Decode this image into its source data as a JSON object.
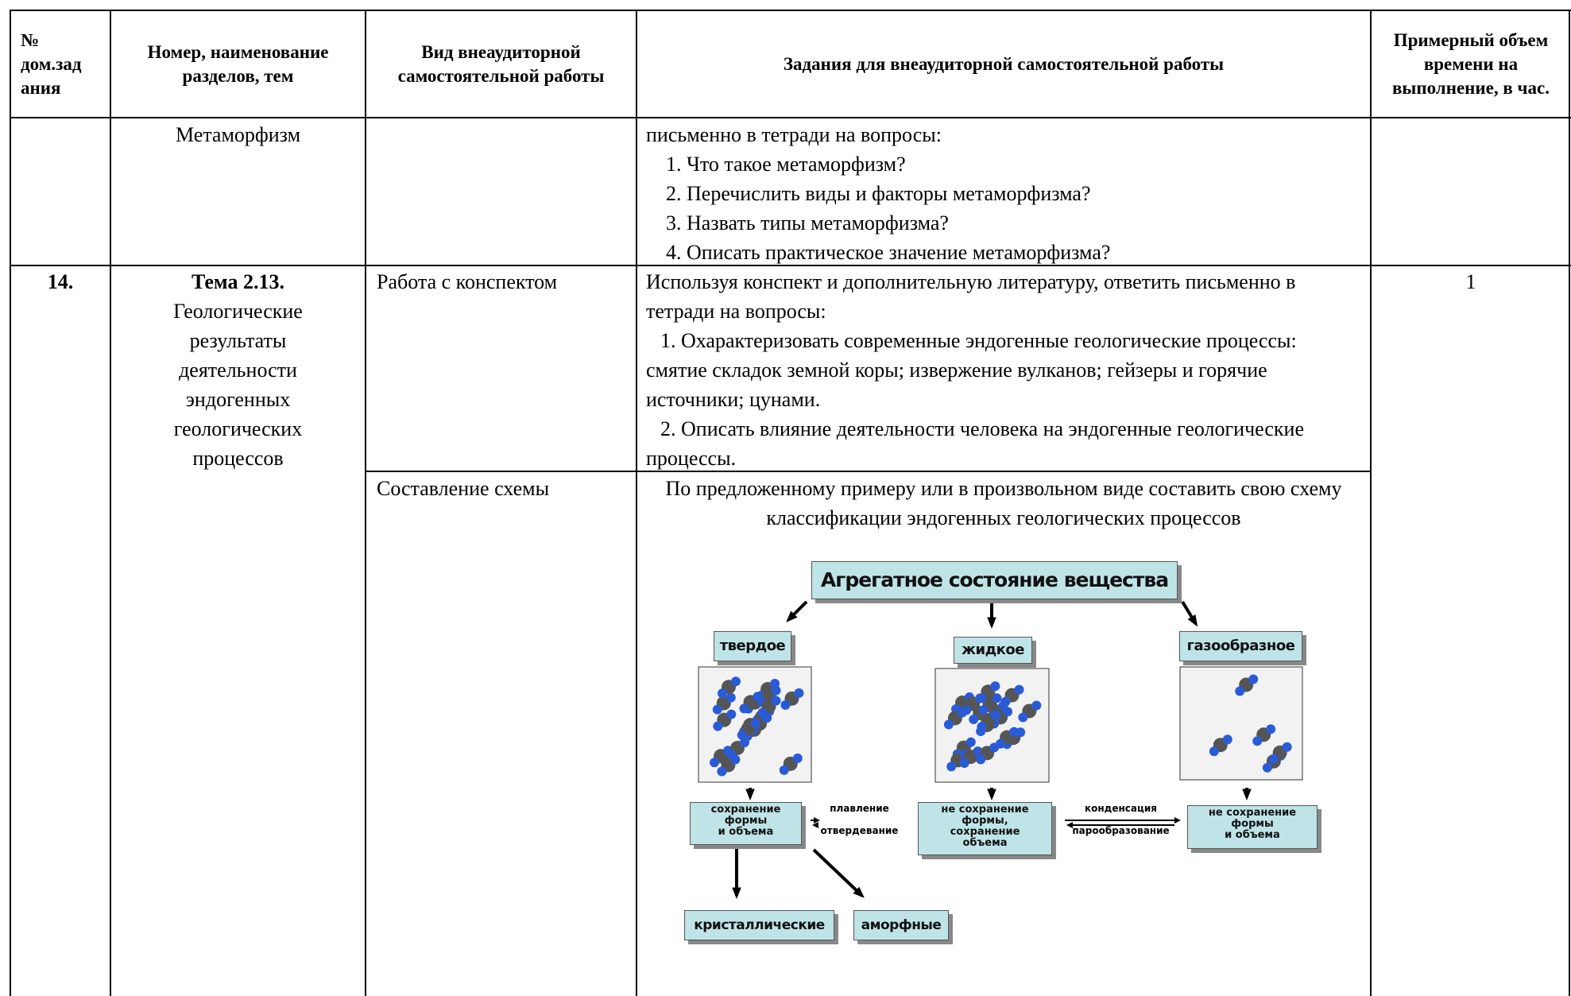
{
  "table": {
    "header": [
      "№\nдом.зад\nания",
      "Номер, наименование разделов, тем",
      "Вид внеаудиторной самостоятельной работы",
      "Задания для внеаудиторной самостоятельной работы",
      "Примерный объем времени на выполнение, в час."
    ],
    "rows": [
      {
        "topic": "Метаморфизм",
        "task_lines": [
          "письменно в тетради на вопросы:"
        ],
        "questions": [
          "1. Что такое метаморфизм?",
          "2. Перечислить виды и факторы метаморфизма?",
          "3. Назвать типы метаморфизма?",
          "4. Описать практическое значение метаморфизма?"
        ]
      },
      {
        "number": "14.",
        "topic_title": "Тема 2.13.",
        "topic": "Геологические результаты деятельности эндогенных геологических процессов",
        "hours": "1",
        "works": [
          {
            "type": "Работа с конспектом",
            "task": [
              "Используя конспект и дополнительную литературу, ответить письменно в тетради на вопросы:",
              "1. Охарактеризовать современные эндогенные геологические процессы:            смятие складок земной коры; извержение вулканов; гейзеры и горячие источники; цунами.",
              "2. Описать влияние деятельности человека  на эндогенные геологические  процессы."
            ]
          },
          {
            "type": "Составление схемы",
            "task": [
              "По предложенному примеру или в произвольном виде составить свою схему классификации эндогенных геологических процессов"
            ]
          }
        ]
      }
    ]
  },
  "diagram": {
    "title": "Агрегатное состояние вещества",
    "states": [
      {
        "name": "твердое",
        "property": "сохранение\nформы\nи объема"
      },
      {
        "name": "жидкое",
        "property": "не сохранение\nформы,\nсохранение\nобъема"
      },
      {
        "name": "газообразное",
        "property": "не сохранение\nформы\nи объема"
      }
    ],
    "transitions": [
      "плавление",
      "отвердевание",
      "конденсация",
      "парообразование"
    ],
    "kinds": [
      "кристаллические",
      "аморфные"
    ]
  }
}
